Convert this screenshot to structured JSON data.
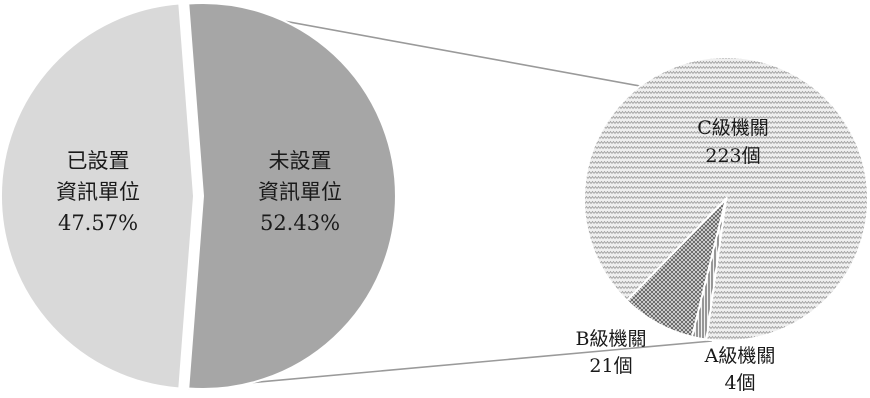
{
  "chart_data": [
    {
      "type": "pie",
      "title": "",
      "slices": [
        {
          "label_lines": [
            "已設置",
            "資訊單位"
          ],
          "value": 47.57,
          "value_label": "47.57%",
          "color": "#d9d9d9"
        },
        {
          "label_lines": [
            "未設置",
            "資訊單位"
          ],
          "value": 52.43,
          "value_label": "52.43%",
          "color": "#a6a6a6"
        }
      ],
      "exploded_slice": "未設置 資訊單位"
    },
    {
      "type": "pie",
      "title": "",
      "slices": [
        {
          "label": "C級機關",
          "value": 223,
          "value_label": "223個",
          "pattern": "zigzag",
          "color": "#c8c8c8"
        },
        {
          "label": "B級機關",
          "value": 21,
          "value_label": "21個",
          "pattern": "crosshatch",
          "color": "#8c8c8c"
        },
        {
          "label": "A級機關",
          "value": 4,
          "value_label": "4個",
          "pattern": "vertical-lines",
          "color": "#555555"
        }
      ]
    }
  ]
}
